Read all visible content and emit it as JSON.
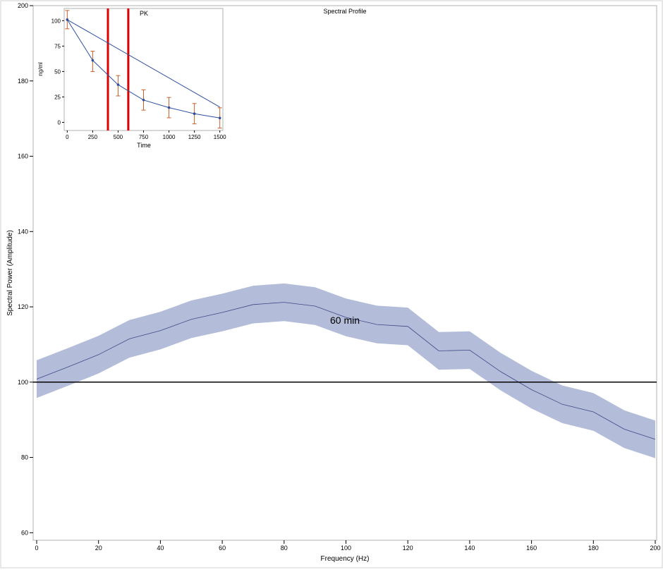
{
  "chart_data": [
    {
      "type": "area",
      "title": "Spectral Profile",
      "xlabel": "Frequency (Hz)",
      "ylabel": "Spectral Power (Amplitude)",
      "xlim": [
        0,
        200
      ],
      "ylim": [
        58,
        200
      ],
      "xticks": [
        0,
        20,
        40,
        60,
        80,
        100,
        120,
        140,
        160,
        180,
        200
      ],
      "yticks": [
        60,
        80,
        100,
        120,
        140,
        160,
        180,
        200
      ],
      "reference_line": 100,
      "annotation": "60 min",
      "band_color": "#b3bcd8",
      "line_color": "#3e4a89",
      "x": [
        0,
        10,
        20,
        30,
        40,
        50,
        60,
        70,
        80,
        90,
        100,
        110,
        120,
        130,
        140,
        150,
        160,
        170,
        180,
        190,
        200
      ],
      "series": [
        {
          "values": [
            100.8,
            104.0,
            107.3,
            111.5,
            113.7,
            116.7,
            118.5,
            120.6,
            121.2,
            120.2,
            117.2,
            115.3,
            114.8,
            108.3,
            108.5,
            102.8,
            98.0,
            94.1,
            92.1,
            87.5,
            84.8
          ]
        }
      ],
      "band_lower": [
        95.8,
        99.0,
        102.3,
        106.5,
        108.7,
        111.7,
        113.5,
        115.6,
        116.2,
        115.2,
        112.2,
        110.3,
        109.8,
        103.3,
        103.5,
        97.8,
        93.0,
        89.1,
        87.1,
        82.5,
        79.8
      ],
      "band_upper": [
        105.8,
        109.0,
        112.3,
        116.5,
        118.7,
        121.7,
        123.5,
        125.6,
        126.2,
        125.2,
        122.2,
        120.3,
        119.8,
        113.3,
        113.5,
        107.8,
        103.0,
        99.1,
        97.1,
        92.5,
        89.8
      ]
    },
    {
      "type": "line",
      "title": "PK",
      "xlabel": "Time",
      "ylabel": "ng/ml",
      "xlim": [
        -30,
        1530
      ],
      "ylim": [
        -8,
        112
      ],
      "xticks": [
        0,
        250,
        500,
        750,
        1000,
        1250,
        1500
      ],
      "yticks": [
        0,
        25,
        50,
        75,
        100
      ],
      "vertical_lines": [
        400,
        600
      ],
      "vertical_line_color": "#dd0000",
      "line_color": "#2e4fa0",
      "errorbar_color": "#c8602a",
      "series": [
        {
          "x": [
            0,
            250,
            500,
            750,
            1000,
            1250,
            1500
          ],
          "values": [
            101,
            61,
            37,
            22,
            14.5,
            8.5,
            4.3
          ],
          "err_lower": [
            92,
            50,
            26,
            12,
            4.5,
            -1.5,
            -5.7
          ],
          "err_upper": [
            110,
            70,
            46,
            32,
            24.5,
            18.5,
            14.3
          ]
        },
        {
          "x": [
            0,
            1500
          ],
          "values": [
            101,
            15
          ]
        }
      ]
    }
  ]
}
